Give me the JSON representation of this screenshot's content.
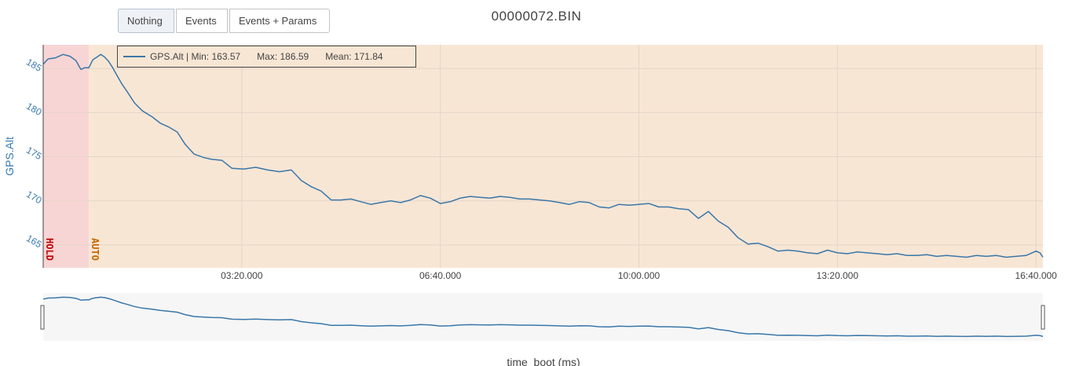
{
  "buttons": {
    "nothing": "Nothing",
    "events": "Events",
    "events_params": "Events + Params"
  },
  "chart_data": {
    "type": "line",
    "title": "00000072.BIN",
    "xlabel": "time_boot (ms)",
    "ylabel": "GPS.Alt",
    "x_tick_labels": [
      "03:20.000",
      "06:40.000",
      "10:00.000",
      "13:20.000",
      "16:40.000"
    ],
    "x_ticks_seconds": [
      200,
      400,
      600,
      800,
      1000
    ],
    "xlim_seconds": [
      0,
      1007
    ],
    "y_ticks": [
      165,
      170,
      175,
      180,
      185
    ],
    "ylim": [
      162.4,
      187.7
    ],
    "grid": true,
    "legend": {
      "label": "GPS.Alt | Min: 163.57",
      "max": "Max: 186.59",
      "mean": "Mean: 171.84",
      "position": "top-left"
    },
    "modes": [
      {
        "label": "HOLD",
        "start": 0,
        "end": 46,
        "color": "#f8d5d5",
        "text_color": "#c00000"
      },
      {
        "label": "AUTO",
        "start": 46,
        "end": 1007,
        "color": "#f8e6d5",
        "text_color": "#c86400"
      }
    ],
    "series": [
      {
        "name": "GPS.Alt",
        "color": "#3a77a8",
        "x": [
          0,
          5,
          12,
          20,
          27,
          33,
          38,
          42,
          46,
          50,
          54,
          58,
          62,
          66,
          70,
          74,
          79,
          85,
          92,
          100,
          110,
          118,
          126,
          135,
          143,
          152,
          162,
          170,
          180,
          190,
          202,
          214,
          226,
          238,
          250,
          260,
          270,
          280,
          290,
          300,
          310,
          320,
          330,
          340,
          350,
          360,
          370,
          380,
          390,
          400,
          410,
          420,
          430,
          440,
          450,
          460,
          470,
          480,
          490,
          500,
          510,
          520,
          530,
          540,
          550,
          560,
          570,
          580,
          590,
          600,
          610,
          620,
          630,
          640,
          650,
          660,
          670,
          680,
          690,
          700,
          710,
          720,
          730,
          740,
          750,
          760,
          770,
          780,
          790,
          800,
          810,
          820,
          830,
          840,
          850,
          860,
          870,
          880,
          890,
          900,
          910,
          920,
          930,
          940,
          950,
          960,
          970,
          980,
          990,
          1000,
          1004,
          1007
        ],
        "y": [
          185.5,
          186.1,
          186.2,
          186.6,
          186.4,
          185.9,
          184.9,
          185.1,
          185.1,
          186.0,
          186.3,
          186.6,
          186.3,
          185.8,
          185.1,
          184.3,
          183.3,
          182.3,
          181.1,
          180.2,
          179.5,
          178.8,
          178.4,
          177.8,
          176.4,
          175.3,
          174.9,
          174.7,
          174.6,
          173.7,
          173.6,
          173.8,
          173.5,
          173.3,
          173.5,
          172.3,
          171.6,
          171.1,
          170.1,
          170.1,
          170.2,
          169.9,
          169.6,
          169.8,
          170.0,
          169.8,
          170.1,
          170.6,
          170.3,
          169.7,
          169.9,
          170.3,
          170.5,
          170.4,
          170.3,
          170.5,
          170.4,
          170.2,
          170.2,
          170.1,
          170.0,
          169.8,
          169.6,
          169.9,
          169.8,
          169.3,
          169.2,
          169.6,
          169.5,
          169.6,
          169.7,
          169.3,
          169.3,
          169.1,
          169.0,
          168.0,
          168.8,
          167.7,
          167.0,
          165.8,
          165.1,
          165.2,
          164.8,
          164.3,
          164.4,
          164.3,
          164.1,
          164.0,
          164.4,
          164.1,
          164.0,
          164.2,
          164.1,
          164.0,
          163.9,
          164.0,
          163.8,
          163.8,
          163.9,
          163.7,
          163.8,
          163.7,
          163.6,
          163.8,
          163.7,
          163.8,
          163.6,
          163.7,
          163.8,
          164.3,
          164.1,
          163.6
        ]
      }
    ]
  }
}
